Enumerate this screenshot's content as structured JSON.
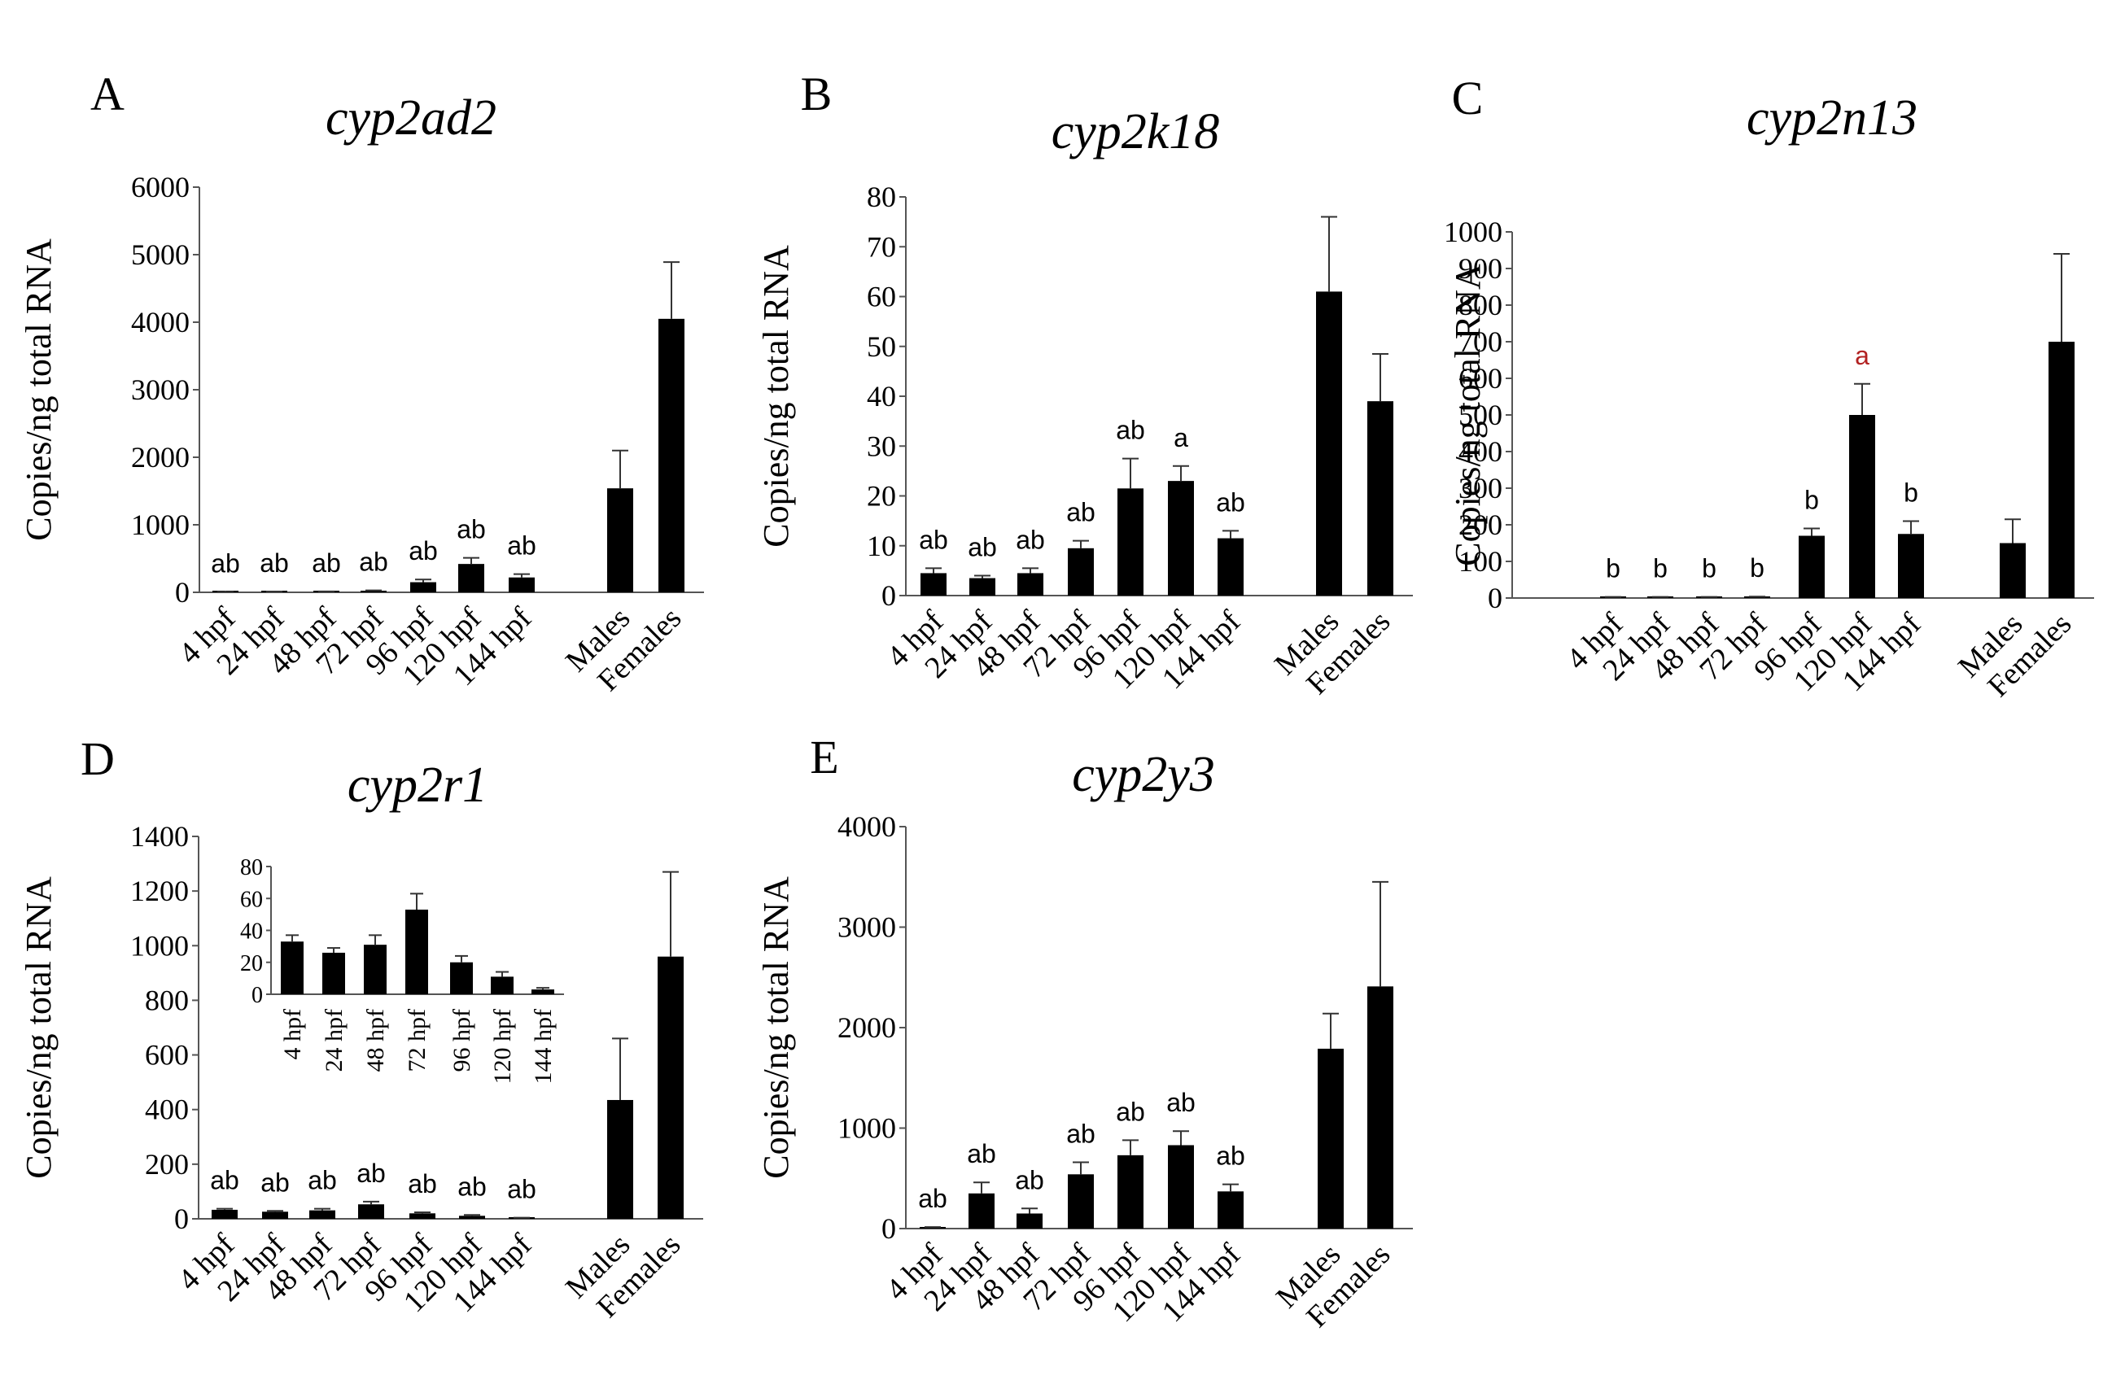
{
  "colors": {
    "bar": "#000000",
    "axis": "#555555",
    "text": "#000000",
    "highlight": "#b22222"
  },
  "chart_data": [
    {
      "id": "A",
      "type": "bar",
      "panel_label": "A",
      "title": "cyp2ad2",
      "ylabel": "Copies/ng total RNA",
      "ylim": [
        0,
        6000
      ],
      "yticks": [
        0,
        1000,
        2000,
        3000,
        4000,
        5000,
        6000
      ],
      "categories": [
        "4 hpf",
        "24 hpf",
        "48 hpf",
        "72 hpf",
        "96 hpf",
        "120 hpf",
        "144 hpf",
        "Males",
        "Females"
      ],
      "values": [
        5,
        8,
        10,
        20,
        150,
        420,
        220,
        1540,
        4050
      ],
      "errors": [
        3,
        4,
        4,
        8,
        40,
        90,
        50,
        560,
        840
      ],
      "annotations": [
        "ab",
        "ab",
        "ab",
        "ab",
        "ab",
        "ab",
        "ab",
        "",
        ""
      ],
      "annotation_colors": [
        "text",
        "text",
        "text",
        "text",
        "text",
        "text",
        "text",
        "text",
        "text"
      ]
    },
    {
      "id": "B",
      "type": "bar",
      "panel_label": "B",
      "title": "cyp2k18",
      "ylabel": "Copies/ng total RNA",
      "ylim": [
        0,
        80
      ],
      "yticks": [
        0,
        10,
        20,
        30,
        40,
        50,
        60,
        70,
        80
      ],
      "categories": [
        "4 hpf",
        "24 hpf",
        "48 hpf",
        "72 hpf",
        "96 hpf",
        "120 hpf",
        "144 hpf",
        "Males",
        "Females"
      ],
      "values": [
        4.5,
        3.5,
        4.5,
        9.5,
        21.5,
        23,
        11.5,
        61,
        39
      ],
      "errors": [
        1,
        0.5,
        1,
        1.5,
        6,
        3,
        1.5,
        15,
        9.5
      ],
      "annotations": [
        "ab",
        "ab",
        "ab",
        "ab",
        "ab",
        "a",
        "ab",
        "",
        ""
      ],
      "annotation_colors": [
        "text",
        "text",
        "text",
        "text",
        "text",
        "text",
        "text",
        "text",
        "text"
      ]
    },
    {
      "id": "C",
      "type": "bar",
      "panel_label": "C",
      "title": "cyp2n13",
      "ylabel": "Copies/ng total RNA",
      "ylim": [
        0,
        1000
      ],
      "yticks": [
        0,
        100,
        200,
        300,
        400,
        500,
        600,
        700,
        800,
        900,
        1000
      ],
      "categories": [
        "4 hpf",
        "24 hpf",
        "48 hpf",
        "72 hpf",
        "96 hpf",
        "120 hpf",
        "144 hpf",
        "Males",
        "Females"
      ],
      "values": [
        2,
        2,
        2,
        3,
        170,
        500,
        175,
        150,
        700
      ],
      "errors": [
        1,
        1,
        1,
        1,
        20,
        85,
        35,
        65,
        240
      ],
      "annotations": [
        "b",
        "b",
        "b",
        "b",
        "b",
        "a",
        "b",
        "",
        ""
      ],
      "annotation_colors": [
        "text",
        "text",
        "text",
        "text",
        "text",
        "highlight",
        "text",
        "text",
        "text"
      ]
    },
    {
      "id": "D",
      "type": "bar",
      "panel_label": "D",
      "title": "cyp2r1",
      "ylabel": "Copies/ng total RNA",
      "ylim": [
        0,
        1400
      ],
      "yticks": [
        0,
        200,
        400,
        600,
        800,
        1000,
        1200,
        1400
      ],
      "categories": [
        "4 hpf",
        "24 hpf",
        "48 hpf",
        "72 hpf",
        "96 hpf",
        "120 hpf",
        "144 hpf",
        "Males",
        "Females"
      ],
      "values": [
        33,
        26,
        31,
        53,
        20,
        11,
        3,
        435,
        960
      ],
      "errors": [
        4,
        3,
        6,
        10,
        4,
        3,
        1,
        225,
        310
      ],
      "annotations": [
        "ab",
        "ab",
        "ab",
        "ab",
        "ab",
        "ab",
        "ab",
        "",
        ""
      ],
      "annotation_colors": [
        "text",
        "text",
        "text",
        "text",
        "text",
        "text",
        "text",
        "text",
        "text"
      ],
      "inset": {
        "ylim": [
          0,
          80
        ],
        "yticks": [
          0,
          20,
          40,
          60,
          80
        ],
        "categories": [
          "4 hpf",
          "24 hpf",
          "48 hpf",
          "72 hpf",
          "96 hpf",
          "120 hpf",
          "144 hpf"
        ],
        "values": [
          33,
          26,
          31,
          53,
          20,
          11,
          3
        ],
        "errors": [
          4,
          3,
          6,
          10,
          4,
          3,
          1
        ]
      }
    },
    {
      "id": "E",
      "type": "bar",
      "panel_label": "E",
      "title": "cyp2y3",
      "ylabel": "Copies/ng total RNA",
      "ylim": [
        0,
        4000
      ],
      "yticks": [
        0,
        1000,
        2000,
        3000,
        4000
      ],
      "categories": [
        "4 hpf",
        "24 hpf",
        "48 hpf",
        "72 hpf",
        "96 hpf",
        "120 hpf",
        "144 hpf",
        "Males",
        "Females"
      ],
      "values": [
        10,
        350,
        150,
        540,
        730,
        830,
        370,
        1790,
        2410
      ],
      "errors": [
        5,
        110,
        50,
        120,
        150,
        140,
        70,
        350,
        1040
      ],
      "annotations": [
        "ab",
        "ab",
        "ab",
        "ab",
        "ab",
        "ab",
        "ab",
        "",
        ""
      ],
      "annotation_colors": [
        "text",
        "text",
        "text",
        "text",
        "text",
        "text",
        "text",
        "text",
        "text"
      ]
    }
  ]
}
